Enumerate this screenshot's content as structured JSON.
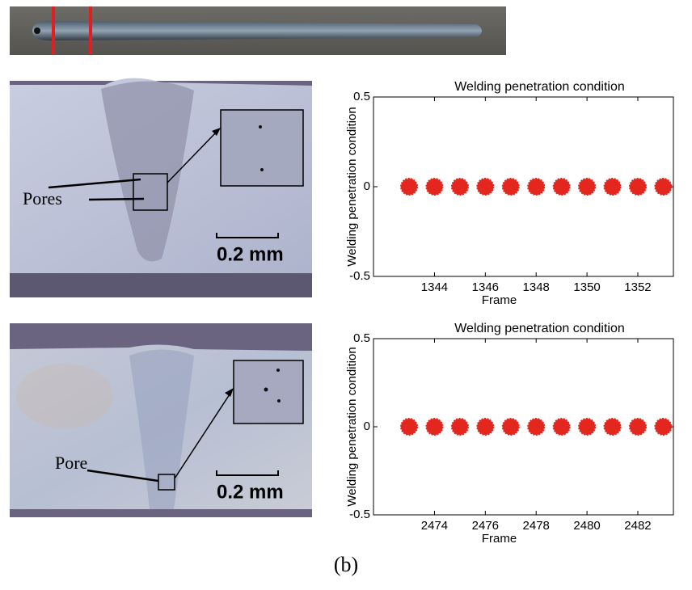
{
  "chart_data": [
    {
      "type": "scatter",
      "title": "Welding penetration condition",
      "xlabel": "Frame",
      "ylabel": "Welding penetration condition",
      "x": [
        1343,
        1344,
        1345,
        1346,
        1347,
        1348,
        1349,
        1350,
        1351,
        1352,
        1353
      ],
      "series": [
        {
          "color": "#e3261e",
          "values": [
            0,
            0,
            0,
            0,
            0,
            0,
            0,
            0,
            0,
            0,
            0
          ]
        }
      ],
      "xlim": [
        1341.6,
        1353.4
      ],
      "xticks": [
        1344,
        1346,
        1348,
        1350,
        1352
      ],
      "ylim": [
        -0.5,
        0.5
      ],
      "yticks": [
        -0.5,
        0,
        0.5
      ]
    },
    {
      "type": "scatter",
      "title": "Welding penetration condition",
      "xlabel": "Frame",
      "ylabel": "Welding penetration condition",
      "x": [
        2473,
        2474,
        2475,
        2476,
        2477,
        2478,
        2479,
        2480,
        2481,
        2482,
        2483
      ],
      "series": [
        {
          "color": "#e3261e",
          "values": [
            0,
            0,
            0,
            0,
            0,
            0,
            0,
            0,
            0,
            0,
            0
          ]
        }
      ],
      "xlim": [
        2471.6,
        2483.4
      ],
      "xticks": [
        2474,
        2476,
        2478,
        2480,
        2482
      ],
      "ylim": [
        -0.5,
        0.5
      ],
      "yticks": [
        -0.5,
        0,
        0.5
      ]
    }
  ],
  "figure": {
    "pores_label": "Pores",
    "pore_label": "Pore",
    "scale_top": "0.2 mm",
    "scale_bottom": "0.2 mm",
    "caption": "(b)"
  }
}
